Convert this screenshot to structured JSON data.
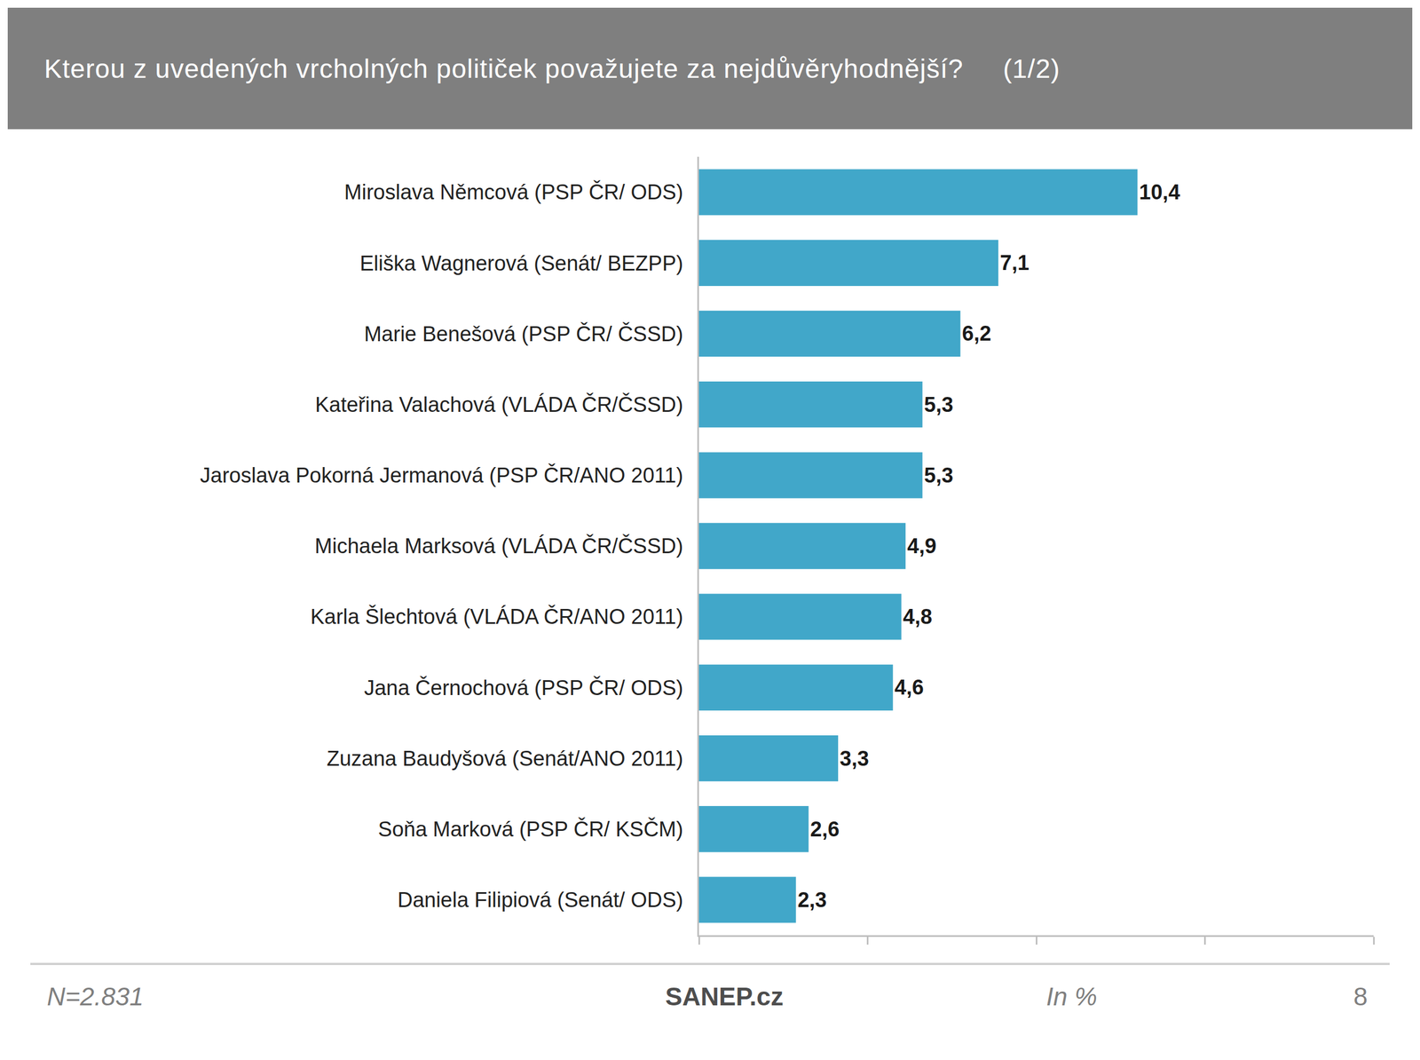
{
  "chart_data": {
    "type": "bar",
    "orientation": "horizontal",
    "title": "Kterou z uvedených vrcholných političek považujete za nejdůvěryhodnější?     (1/2)",
    "categories": [
      "Miroslava Němcová (PSP ČR/ ODS)",
      "Eliška Wagnerová (Senát/ BEZPP)",
      "Marie Benešová (PSP ČR/ ČSSD)",
      "Kateřina Valachová (VLÁDA ČR/ČSSD)",
      "Jaroslava Pokorná Jermanová (PSP ČR/ANO 2011)",
      "Michaela Marksová (VLÁDA ČR/ČSSD)",
      "Karla Šlechtová (VLÁDA ČR/ANO 2011)",
      "Jana Černochová (PSP ČR/ ODS)",
      "Zuzana Baudyšová (Senát/ANO 2011)",
      "Soňa Marková (PSP ČR/ KSČM)",
      "Daniela Filipiová (Senát/ ODS)"
    ],
    "values": [
      10.4,
      7.1,
      6.2,
      5.3,
      5.3,
      4.9,
      4.8,
      4.6,
      3.3,
      2.6,
      2.3
    ],
    "value_labels": [
      "10,4",
      "7,1",
      "6,2",
      "5,3",
      "5,3",
      "4,9",
      "4,8",
      "4,6",
      "3,3",
      "2,6",
      "2,3"
    ],
    "data_labels": true,
    "color": "#41a7c9",
    "xlim": [
      0,
      16
    ],
    "xticks": [
      0,
      4,
      8,
      12,
      16
    ],
    "tick_labels": "y",
    "grid": false,
    "note": "N=2.831",
    "source": "SANEP.cz",
    "unit_label": "In %",
    "page": "8"
  }
}
